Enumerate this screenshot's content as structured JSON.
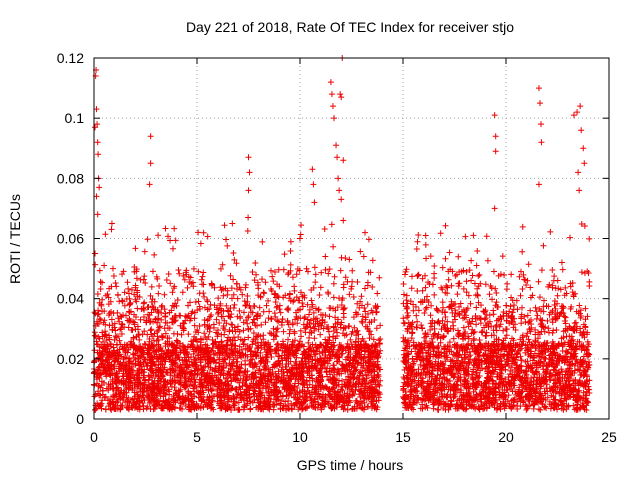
{
  "chart_data": {
    "type": "scatter",
    "title": "Day 221 of 2018, Rate Of TEC Index for receiver stjo",
    "xlabel": "GPS time / hours",
    "ylabel": "ROTI / TECUs",
    "xlim": [
      0,
      25
    ],
    "ylim": [
      0,
      0.12
    ],
    "xticks": [
      0,
      5,
      10,
      15,
      20,
      25
    ],
    "xtick_labels": [
      "0",
      "5",
      "10",
      "15",
      "20",
      "25"
    ],
    "yticks": [
      0,
      0.02,
      0.04,
      0.06,
      0.08,
      0.1,
      0.12
    ],
    "ytick_labels": [
      "0",
      "0.02",
      "0.04",
      "0.06",
      "0.08",
      "0.1",
      "0.12"
    ],
    "grid": true,
    "marker": "+",
    "color": "#ee0000",
    "series": [
      {
        "name": "ROTI",
        "description": "Dense cloud of points, mostly 0.003-0.04 TECU/s, from 0 to ~13.9 h and from ~15.0 to ~24 h (gap 13.9-15.0 h).",
        "points": [
          [
            0.05,
            0.097
          ],
          [
            0.08,
            0.114
          ],
          [
            0.1,
            0.116
          ],
          [
            0.12,
            0.103
          ],
          [
            0.15,
            0.098
          ],
          [
            0.18,
            0.092
          ],
          [
            0.2,
            0.088
          ],
          [
            0.22,
            0.08
          ],
          [
            0.25,
            0.077
          ],
          [
            0.12,
            0.074
          ],
          [
            0.18,
            0.068
          ],
          [
            0.05,
            0.055
          ],
          [
            2.75,
            0.094
          ],
          [
            2.75,
            0.085
          ],
          [
            2.7,
            0.078
          ],
          [
            7.5,
            0.087
          ],
          [
            7.55,
            0.082
          ],
          [
            7.5,
            0.076
          ],
          [
            7.48,
            0.067
          ],
          [
            10.6,
            0.083
          ],
          [
            10.65,
            0.078
          ],
          [
            10.7,
            0.072
          ],
          [
            11.5,
            0.112
          ],
          [
            11.55,
            0.108
          ],
          [
            11.6,
            0.104
          ],
          [
            11.65,
            0.1
          ],
          [
            11.75,
            0.091
          ],
          [
            11.8,
            0.087
          ],
          [
            11.85,
            0.08
          ],
          [
            11.9,
            0.076
          ],
          [
            11.95,
            0.108
          ],
          [
            12.0,
            0.107
          ],
          [
            12.05,
            0.12
          ],
          [
            12.1,
            0.086
          ],
          [
            12.0,
            0.073
          ],
          [
            12.1,
            0.066
          ],
          [
            19.45,
            0.101
          ],
          [
            19.5,
            0.094
          ],
          [
            19.5,
            0.089
          ],
          [
            19.45,
            0.07
          ],
          [
            21.6,
            0.11
          ],
          [
            21.65,
            0.105
          ],
          [
            21.7,
            0.098
          ],
          [
            21.72,
            0.092
          ],
          [
            21.6,
            0.078
          ],
          [
            23.3,
            0.101
          ],
          [
            23.45,
            0.102
          ],
          [
            23.6,
            0.104
          ],
          [
            23.65,
            0.096
          ],
          [
            23.75,
            0.09
          ],
          [
            23.8,
            0.085
          ],
          [
            23.5,
            0.082
          ],
          [
            23.55,
            0.076
          ]
        ]
      }
    ]
  }
}
